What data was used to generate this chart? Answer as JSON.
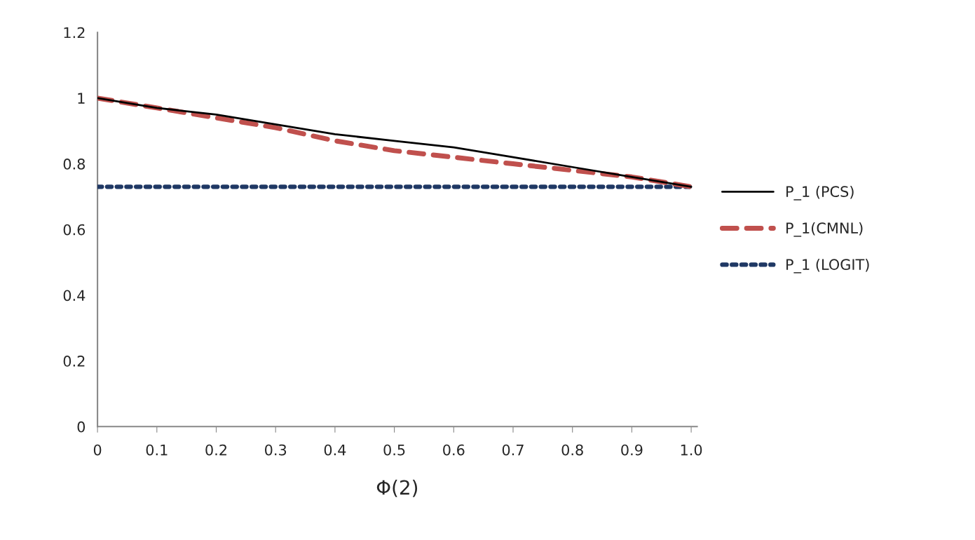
{
  "chart_data": {
    "type": "line",
    "xlabel": "Φ(2)",
    "categories": [
      "0",
      "0.1",
      "0.2",
      "0.3",
      "0.4",
      "0.5",
      "0.6",
      "0.7",
      "0.8",
      "0.9",
      "1.0"
    ],
    "series": [
      {
        "name": "P_1 (PCS)",
        "color": "#000000",
        "line_style": "solid",
        "values": [
          1,
          0.97,
          0.95,
          0.92,
          0.89,
          0.87,
          0.85,
          0.82,
          0.79,
          0.76,
          0.73
        ]
      },
      {
        "name": "P_1(CMNL)",
        "color": "#c0504d",
        "line_style": "dashed",
        "values": [
          1,
          0.97,
          0.94,
          0.91,
          0.87,
          0.84,
          0.82,
          0.8,
          0.78,
          0.76,
          0.73
        ]
      },
      {
        "name": "P_1 (LOGIT)",
        "color": "#1f3864",
        "line_style": "dotted",
        "values": [
          0.73,
          0.73,
          0.73,
          0.73,
          0.73,
          0.73,
          0.73,
          0.73,
          0.73,
          0.73,
          0.73
        ]
      }
    ],
    "ylim": [
      0,
      1.2
    ],
    "yticks": [
      0,
      0.2,
      0.4,
      0.6,
      0.8,
      1,
      1.2
    ],
    "grid": false,
    "legend": "right"
  }
}
